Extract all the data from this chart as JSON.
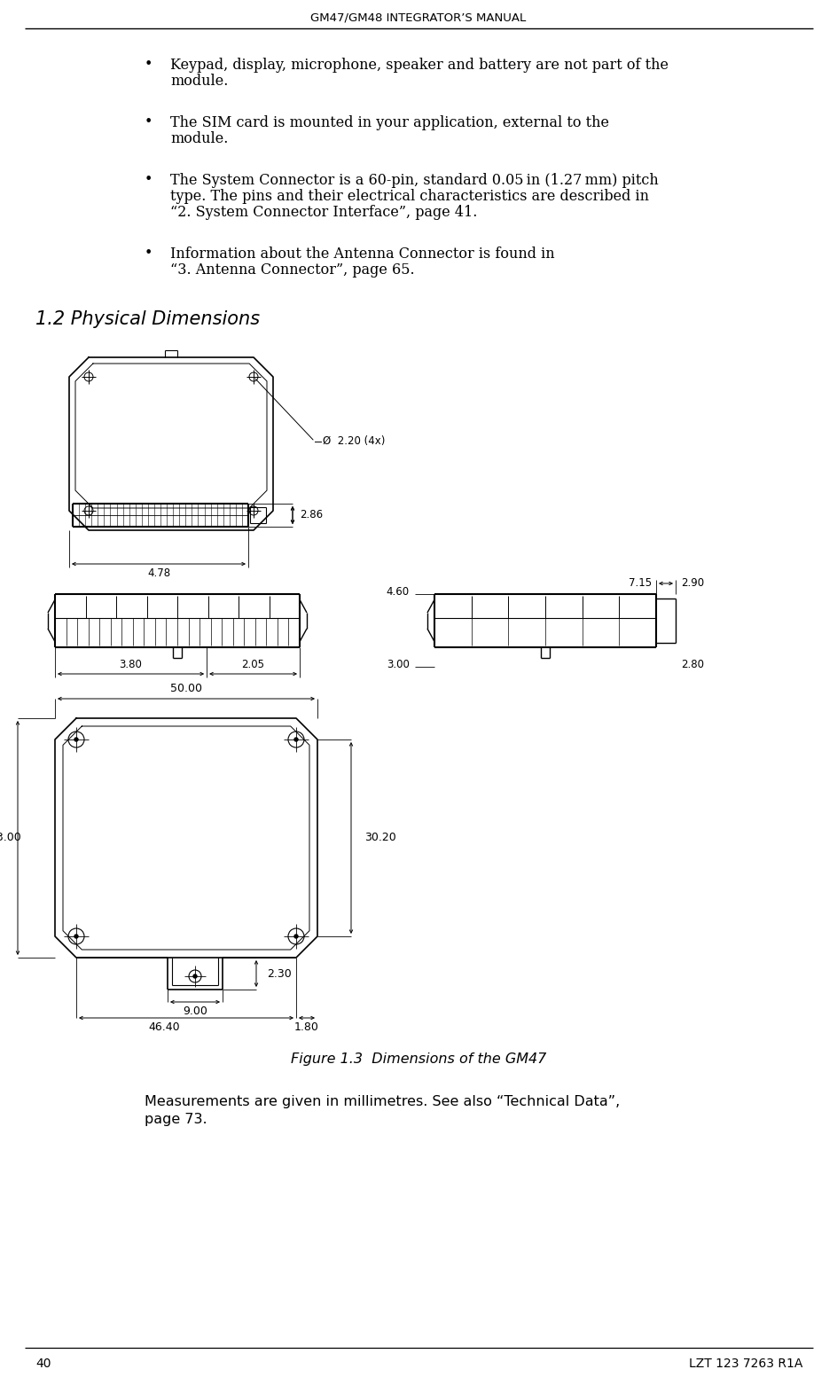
{
  "page_title": "GM47/GM48 INTEGRATOR’S MANUAL",
  "page_number": "40",
  "page_ref": "LZT 123 7263 R1A",
  "section_title": "1.2 Physical Dimensions",
  "figure_caption": "Figure 1.3  Dimensions of the GM47",
  "figure_note_line1": "Measurements are given in millimetres. See also “Technical Data”,",
  "figure_note_line2": "page 73.",
  "bullet1_line1": "Keypad, display, microphone, speaker and battery are not part of the",
  "bullet1_line2": "module.",
  "bullet2_line1": "The SIM card is mounted in your application, external to the",
  "bullet2_line2": "module.",
  "bullet3_line1": "The System Connector is a 60-pin, standard 0.05 in (1.27 mm) pitch",
  "bullet3_line2": "type. The pins and their electrical characteristics are described in",
  "bullet3_line3": "“2. System Connector Interface”, page 41.",
  "bullet4_line1": "Information about the Antenna Connector is found in",
  "bullet4_line2": "“3. Antenna Connector”, page 65.",
  "bg_color": "#ffffff",
  "text_color": "#000000",
  "line_color": "#000000",
  "gray_color": "#888888"
}
